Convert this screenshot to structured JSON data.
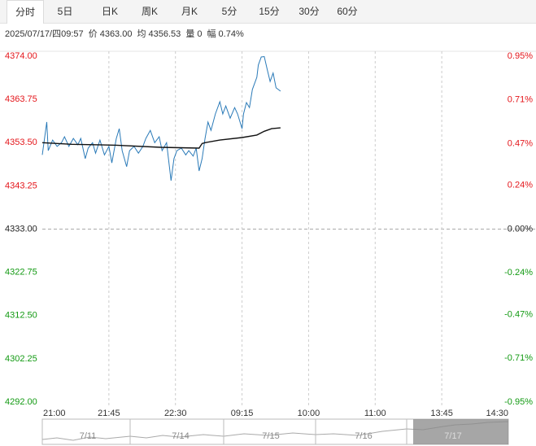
{
  "tabs": [
    "分时",
    "5日",
    "日K",
    "周K",
    "月K",
    "5分",
    "15分",
    "30分",
    "60分"
  ],
  "info": {
    "time": "2025/07/17/四09:57",
    "price_label": "价",
    "price": "4363.00",
    "avg_label": "均",
    "avg": "4356.53",
    "vol_label": "量",
    "vol": "0",
    "amp_label": "幅",
    "amp": "0.74%"
  },
  "chart_data": {
    "type": "line",
    "xlim": [
      0,
      315
    ],
    "xticks": [
      {
        "value": 0,
        "label": "21:00"
      },
      {
        "value": 45,
        "label": "21:45"
      },
      {
        "value": 90,
        "label": "22:30"
      },
      {
        "value": 135,
        "label": "09:15"
      },
      {
        "value": 180,
        "label": "10:00"
      },
      {
        "value": 225,
        "label": "11:00"
      },
      {
        "value": 270,
        "label": "13:45"
      },
      {
        "value": 315,
        "label": "14:30"
      }
    ],
    "ylim": [
      4292,
      4374
    ],
    "yticks": [
      {
        "value": 4374,
        "label": "4374.00"
      },
      {
        "value": 4363.75,
        "label": "4363.75"
      },
      {
        "value": 4353.5,
        "label": "4353.50"
      },
      {
        "value": 4343.25,
        "label": "4343.25"
      },
      {
        "value": 4333,
        "label": "4333.00"
      },
      {
        "value": 4322.75,
        "label": "4322.75"
      },
      {
        "value": 4312.5,
        "label": "4312.50"
      },
      {
        "value": 4302.25,
        "label": "4302.25"
      },
      {
        "value": 4292,
        "label": "4292.00"
      }
    ],
    "y2lim": [
      -0.95,
      0.95
    ],
    "y2ticks": [
      {
        "value": 0.95,
        "label": "0.95%"
      },
      {
        "value": 0.71,
        "label": "0.71%"
      },
      {
        "value": 0.47,
        "label": "0.47%"
      },
      {
        "value": 0.24,
        "label": "0.24%"
      },
      {
        "value": 0,
        "label": "0.00%"
      },
      {
        "value": -0.24,
        "label": "-0.24%"
      },
      {
        "value": -0.47,
        "label": "-0.47%"
      },
      {
        "value": -0.71,
        "label": "-0.71%"
      },
      {
        "value": -0.95,
        "label": "-0.95%"
      }
    ],
    "up_color": "#e4161b",
    "down_color": "#139a13",
    "series": [
      {
        "color": "#2a7ab8",
        "x": [
          0,
          3,
          4,
          7,
          10,
          13,
          15,
          18,
          21,
          24,
          26,
          29,
          31,
          34,
          36,
          39,
          42,
          45,
          47,
          50,
          52,
          54,
          57,
          59,
          62,
          65,
          68,
          70,
          73,
          76,
          79,
          81,
          84,
          87,
          89,
          91,
          94,
          97,
          99,
          102,
          104,
          106,
          108,
          110,
          112,
          114,
          117,
          120,
          122,
          124,
          127,
          130,
          132,
          135,
          136,
          138,
          140,
          142,
          145,
          146,
          148,
          150,
          152,
          154,
          156,
          158,
          161
        ],
        "values": [
          4350.6,
          4358.4,
          4351.6,
          4354.1,
          4352.6,
          4353.5,
          4354.9,
          4352.6,
          4354.5,
          4353.0,
          4354.5,
          4349.7,
          4352.2,
          4353.5,
          4351.0,
          4354.1,
          4350.6,
          4352.6,
          4348.7,
          4354.5,
          4356.8,
          4351.6,
          4347.8,
          4351.6,
          4352.6,
          4351.0,
          4352.6,
          4354.5,
          4356.4,
          4353.5,
          4354.9,
          4351.6,
          4353.5,
          4344.5,
          4349.7,
          4351.6,
          4352.2,
          4350.6,
          4351.6,
          4350.3,
          4352.2,
          4346.8,
          4349.7,
          4354.5,
          4358.4,
          4356.4,
          4360.3,
          4363.2,
          4360.3,
          4362.2,
          4359.3,
          4361.8,
          4360.3,
          4356.8,
          4360.3,
          4363.0,
          4361.8,
          4366.1,
          4369.0,
          4371.9,
          4373.8,
          4373.9,
          4370.9,
          4368.0,
          4370.0,
          4366.5,
          4365.7
        ]
      },
      {
        "color": "#111111",
        "x": [
          0,
          20,
          50,
          80,
          106,
          108,
          110,
          120,
          135,
          145,
          150,
          155,
          161
        ],
        "values": [
          4353.5,
          4353.1,
          4352.9,
          4352.4,
          4352.2,
          4353.3,
          4353.5,
          4354.1,
          4354.7,
          4355.3,
          4356.2,
          4356.8,
          4357.0
        ]
      }
    ]
  },
  "navigator": {
    "dates": [
      "7/11",
      "7/14",
      "7/15",
      "7/16",
      "7/17"
    ]
  }
}
